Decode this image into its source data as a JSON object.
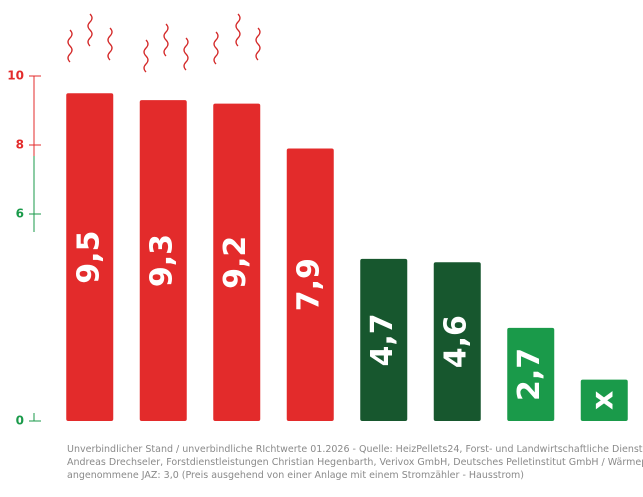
{
  "chart_data": {
    "type": "bar",
    "values": [
      9.5,
      9.3,
      9.2,
      7.9,
      4.7,
      4.6,
      2.7,
      1.2
    ],
    "value_labels": [
      "9,5",
      "9,3",
      "9,2",
      "7,9",
      "4,7",
      "4,6",
      "2,7",
      "x"
    ],
    "colors": [
      "#e32b2b",
      "#e32b2b",
      "#e32b2b",
      "#e32b2b",
      "#17572e",
      "#17572e",
      "#1a9a4a",
      "#1a9a4a"
    ],
    "ylim": [
      0,
      10
    ],
    "yticks": [
      0,
      6,
      8,
      10
    ],
    "ytick_colors": [
      "#1a9a4a",
      "#1a9a4a",
      "#e32b2b",
      "#e32b2b"
    ],
    "footnote": [
      "Unverbindlicher Stand / unverbindliche RIchtwerte 01.2026 - Quelle: HeizPellets24, Forst- und Landwirtschaftliche Dienstleistungen",
      "Andreas Drechseler, Forstdienstleistungen Christian Hegenbarth, Verivox GmbH, Deutsches Pelletinstitut GmbH / Wärmepumpe",
      "angenommene JAZ: 3,0 (Preis ausgehend von einer Anlage mit einem Stromzähler - Hausstrom)"
    ]
  }
}
